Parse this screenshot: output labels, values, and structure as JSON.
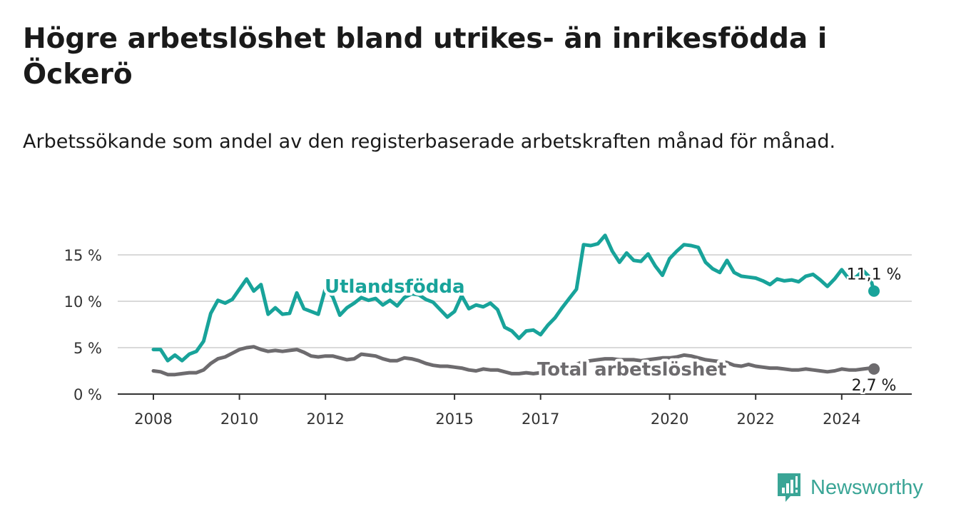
{
  "title": "Högre arbetslöshet bland utrikes- än inrikesfödda i Öckerö",
  "subtitle": "Arbetssökande som andel av den registerbaserade arbetskraften månad för månad.",
  "brand": {
    "name": "Newsworthy",
    "icon": "bar-chart-alert-icon",
    "color": "#3aa596"
  },
  "chart_data": {
    "type": "line",
    "ylim": [
      0,
      15
    ],
    "yticks": [
      "15 %",
      "10 %",
      "5 %",
      "0 %"
    ],
    "xticks": [
      "2008",
      "2010",
      "2012",
      "2015",
      "2017",
      "2020",
      "2022",
      "2024"
    ],
    "grid": true,
    "series": [
      {
        "name": "Utlandsfödda",
        "color": "#18a39a",
        "end_label": "11,1 %",
        "points": [
          [
            "2008-01",
            4.8
          ],
          [
            "2008-03",
            4.8
          ],
          [
            "2008-05",
            3.6
          ],
          [
            "2008-07",
            4.2
          ],
          [
            "2008-09",
            3.6
          ],
          [
            "2008-11",
            4.3
          ],
          [
            "2009-01",
            4.6
          ],
          [
            "2009-03",
            5.7
          ],
          [
            "2009-05",
            8.7
          ],
          [
            "2009-07",
            10.1
          ],
          [
            "2009-09",
            9.8
          ],
          [
            "2009-11",
            10.2
          ],
          [
            "2010-01",
            11.3
          ],
          [
            "2010-03",
            12.4
          ],
          [
            "2010-05",
            11.1
          ],
          [
            "2010-07",
            11.8
          ],
          [
            "2010-09",
            8.6
          ],
          [
            "2010-11",
            9.3
          ],
          [
            "2011-01",
            8.6
          ],
          [
            "2011-03",
            8.7
          ],
          [
            "2011-05",
            10.9
          ],
          [
            "2011-07",
            9.2
          ],
          [
            "2011-09",
            8.9
          ],
          [
            "2011-11",
            8.6
          ],
          [
            "2012-01",
            11.4
          ],
          [
            "2012-03",
            10.5
          ],
          [
            "2012-05",
            8.5
          ],
          [
            "2012-07",
            9.3
          ],
          [
            "2012-09",
            9.8
          ],
          [
            "2012-11",
            10.4
          ],
          [
            "2013-01",
            10.1
          ],
          [
            "2013-03",
            10.3
          ],
          [
            "2013-05",
            9.6
          ],
          [
            "2013-07",
            10.1
          ],
          [
            "2013-09",
            9.5
          ],
          [
            "2013-11",
            10.4
          ],
          [
            "2014-01",
            10.8
          ],
          [
            "2014-03",
            10.7
          ],
          [
            "2014-05",
            10.2
          ],
          [
            "2014-07",
            9.9
          ],
          [
            "2014-09",
            9.1
          ],
          [
            "2014-11",
            8.3
          ],
          [
            "2015-01",
            8.9
          ],
          [
            "2015-03",
            10.6
          ],
          [
            "2015-05",
            9.2
          ],
          [
            "2015-07",
            9.6
          ],
          [
            "2015-09",
            9.4
          ],
          [
            "2015-11",
            9.8
          ],
          [
            "2016-01",
            9.1
          ],
          [
            "2016-03",
            7.2
          ],
          [
            "2016-05",
            6.8
          ],
          [
            "2016-07",
            6.0
          ],
          [
            "2016-09",
            6.8
          ],
          [
            "2016-11",
            6.9
          ],
          [
            "2017-01",
            6.4
          ],
          [
            "2017-03",
            7.4
          ],
          [
            "2017-05",
            8.2
          ],
          [
            "2017-07",
            9.3
          ],
          [
            "2017-09",
            10.3
          ],
          [
            "2017-11",
            11.3
          ],
          [
            "2018-01",
            16.1
          ],
          [
            "2018-03",
            16.0
          ],
          [
            "2018-05",
            16.2
          ],
          [
            "2018-07",
            17.1
          ],
          [
            "2018-09",
            15.4
          ],
          [
            "2018-11",
            14.2
          ],
          [
            "2019-01",
            15.2
          ],
          [
            "2019-03",
            14.4
          ],
          [
            "2019-05",
            14.3
          ],
          [
            "2019-07",
            15.1
          ],
          [
            "2019-09",
            13.8
          ],
          [
            "2019-11",
            12.8
          ],
          [
            "2020-01",
            14.6
          ],
          [
            "2020-03",
            15.4
          ],
          [
            "2020-05",
            16.1
          ],
          [
            "2020-07",
            16.0
          ],
          [
            "2020-09",
            15.8
          ],
          [
            "2020-11",
            14.2
          ],
          [
            "2021-01",
            13.5
          ],
          [
            "2021-03",
            13.1
          ],
          [
            "2021-05",
            14.4
          ],
          [
            "2021-07",
            13.1
          ],
          [
            "2021-09",
            12.7
          ],
          [
            "2021-11",
            12.6
          ],
          [
            "2022-01",
            12.5
          ],
          [
            "2022-03",
            12.2
          ],
          [
            "2022-05",
            11.8
          ],
          [
            "2022-07",
            12.4
          ],
          [
            "2022-09",
            12.2
          ],
          [
            "2022-11",
            12.3
          ],
          [
            "2023-01",
            12.1
          ],
          [
            "2023-03",
            12.7
          ],
          [
            "2023-05",
            12.9
          ],
          [
            "2023-07",
            12.3
          ],
          [
            "2023-09",
            11.6
          ],
          [
            "2023-11",
            12.4
          ],
          [
            "2024-01",
            13.4
          ],
          [
            "2024-03",
            12.4
          ],
          [
            "2024-05",
            12.6
          ],
          [
            "2024-07",
            13.3
          ],
          [
            "2024-09",
            12.5
          ],
          [
            "2024-10",
            11.1
          ]
        ]
      },
      {
        "name": "Total arbetslöshet",
        "color": "#6d6b6e",
        "end_label": "2,7 %",
        "points": [
          [
            "2008-01",
            2.5
          ],
          [
            "2008-03",
            2.4
          ],
          [
            "2008-05",
            2.1
          ],
          [
            "2008-07",
            2.1
          ],
          [
            "2008-09",
            2.2
          ],
          [
            "2008-11",
            2.3
          ],
          [
            "2009-01",
            2.3
          ],
          [
            "2009-03",
            2.6
          ],
          [
            "2009-05",
            3.3
          ],
          [
            "2009-07",
            3.8
          ],
          [
            "2009-09",
            4.0
          ],
          [
            "2009-11",
            4.4
          ],
          [
            "2010-01",
            4.8
          ],
          [
            "2010-03",
            5.0
          ],
          [
            "2010-05",
            5.1
          ],
          [
            "2010-07",
            4.8
          ],
          [
            "2010-09",
            4.6
          ],
          [
            "2010-11",
            4.7
          ],
          [
            "2011-01",
            4.6
          ],
          [
            "2011-03",
            4.7
          ],
          [
            "2011-05",
            4.8
          ],
          [
            "2011-07",
            4.5
          ],
          [
            "2011-09",
            4.1
          ],
          [
            "2011-11",
            4.0
          ],
          [
            "2012-01",
            4.1
          ],
          [
            "2012-03",
            4.1
          ],
          [
            "2012-05",
            3.9
          ],
          [
            "2012-07",
            3.7
          ],
          [
            "2012-09",
            3.8
          ],
          [
            "2012-11",
            4.3
          ],
          [
            "2013-01",
            4.2
          ],
          [
            "2013-03",
            4.1
          ],
          [
            "2013-05",
            3.8
          ],
          [
            "2013-07",
            3.6
          ],
          [
            "2013-09",
            3.6
          ],
          [
            "2013-11",
            3.9
          ],
          [
            "2014-01",
            3.8
          ],
          [
            "2014-03",
            3.6
          ],
          [
            "2014-05",
            3.3
          ],
          [
            "2014-07",
            3.1
          ],
          [
            "2014-09",
            3.0
          ],
          [
            "2014-11",
            3.0
          ],
          [
            "2015-01",
            2.9
          ],
          [
            "2015-03",
            2.8
          ],
          [
            "2015-05",
            2.6
          ],
          [
            "2015-07",
            2.5
          ],
          [
            "2015-09",
            2.7
          ],
          [
            "2015-11",
            2.6
          ],
          [
            "2016-01",
            2.6
          ],
          [
            "2016-03",
            2.4
          ],
          [
            "2016-05",
            2.2
          ],
          [
            "2016-07",
            2.2
          ],
          [
            "2016-09",
            2.3
          ],
          [
            "2016-11",
            2.2
          ],
          [
            "2017-01",
            2.3
          ],
          [
            "2017-03",
            2.4
          ],
          [
            "2017-05",
            2.6
          ],
          [
            "2017-07",
            2.8
          ],
          [
            "2017-09",
            3.0
          ],
          [
            "2017-11",
            3.2
          ],
          [
            "2018-01",
            3.5
          ],
          [
            "2018-03",
            3.6
          ],
          [
            "2018-05",
            3.7
          ],
          [
            "2018-07",
            3.8
          ],
          [
            "2018-09",
            3.8
          ],
          [
            "2018-11",
            3.7
          ],
          [
            "2019-01",
            3.7
          ],
          [
            "2019-03",
            3.7
          ],
          [
            "2019-05",
            3.6
          ],
          [
            "2019-07",
            3.7
          ],
          [
            "2019-09",
            3.8
          ],
          [
            "2019-11",
            3.9
          ],
          [
            "2020-01",
            3.9
          ],
          [
            "2020-03",
            4.0
          ],
          [
            "2020-05",
            4.2
          ],
          [
            "2020-07",
            4.1
          ],
          [
            "2020-09",
            3.9
          ],
          [
            "2020-11",
            3.7
          ],
          [
            "2021-01",
            3.6
          ],
          [
            "2021-03",
            3.5
          ],
          [
            "2021-05",
            3.4
          ],
          [
            "2021-07",
            3.1
          ],
          [
            "2021-09",
            3.0
          ],
          [
            "2021-11",
            3.2
          ],
          [
            "2022-01",
            3.0
          ],
          [
            "2022-03",
            2.9
          ],
          [
            "2022-05",
            2.8
          ],
          [
            "2022-07",
            2.8
          ],
          [
            "2022-09",
            2.7
          ],
          [
            "2022-11",
            2.6
          ],
          [
            "2023-01",
            2.6
          ],
          [
            "2023-03",
            2.7
          ],
          [
            "2023-05",
            2.6
          ],
          [
            "2023-07",
            2.5
          ],
          [
            "2023-09",
            2.4
          ],
          [
            "2023-11",
            2.5
          ],
          [
            "2024-01",
            2.7
          ],
          [
            "2024-03",
            2.6
          ],
          [
            "2024-05",
            2.6
          ],
          [
            "2024-07",
            2.7
          ],
          [
            "2024-09",
            2.8
          ],
          [
            "2024-10",
            2.7
          ]
        ]
      }
    ]
  }
}
